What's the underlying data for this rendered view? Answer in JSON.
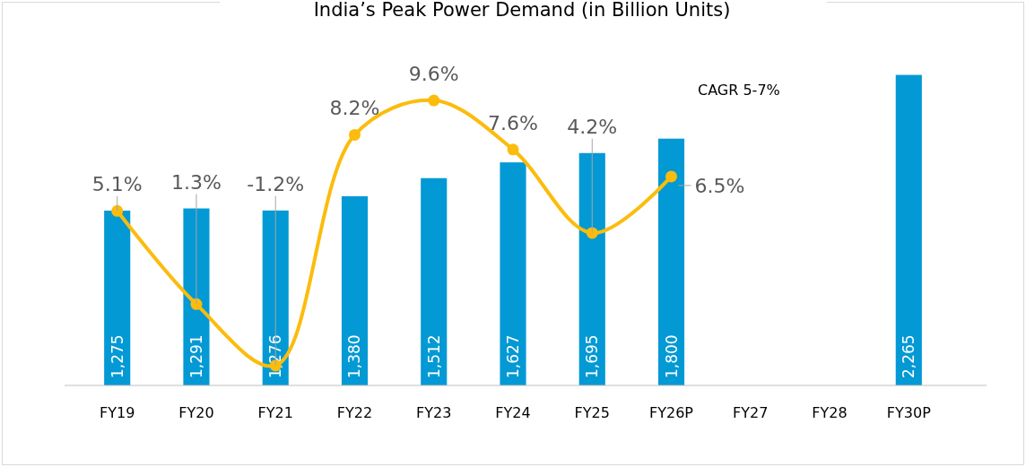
{
  "chart_data": {
    "type": "bar",
    "title": "India’s Peak Power Demand (in Billion Units)",
    "categories": [
      "FY19",
      "FY20",
      "FY21",
      "FY22",
      "FY23",
      "FY24",
      "FY25",
      "FY26P",
      "FY27",
      "FY28",
      "FY30P"
    ],
    "series": [
      {
        "color": "#0399d4",
        "values": [
          1275,
          1291,
          1276,
          1380,
          1512,
          1627,
          1695,
          1800,
          null,
          null,
          2265
        ],
        "value_labels": [
          "1,275",
          "1,291",
          "1,276",
          "1,380",
          "1,512",
          "1,627",
          "1,695",
          "1,800",
          null,
          null,
          "2,265"
        ]
      },
      {
        "type": "line",
        "axis": "y2",
        "color": "#fbbc0d",
        "marker": "circle",
        "values": [
          5.1,
          1.3,
          -1.2,
          8.2,
          9.6,
          7.6,
          4.2,
          6.5,
          null,
          null,
          null
        ],
        "value_labels": [
          "5.1%",
          "1.3%",
          "-1.2%",
          "8.2%",
          "9.6%",
          "7.6%",
          "4.2%",
          "6.5%",
          null,
          null,
          null
        ]
      }
    ],
    "annotations": [
      "CAGR 5-7%"
    ]
  }
}
